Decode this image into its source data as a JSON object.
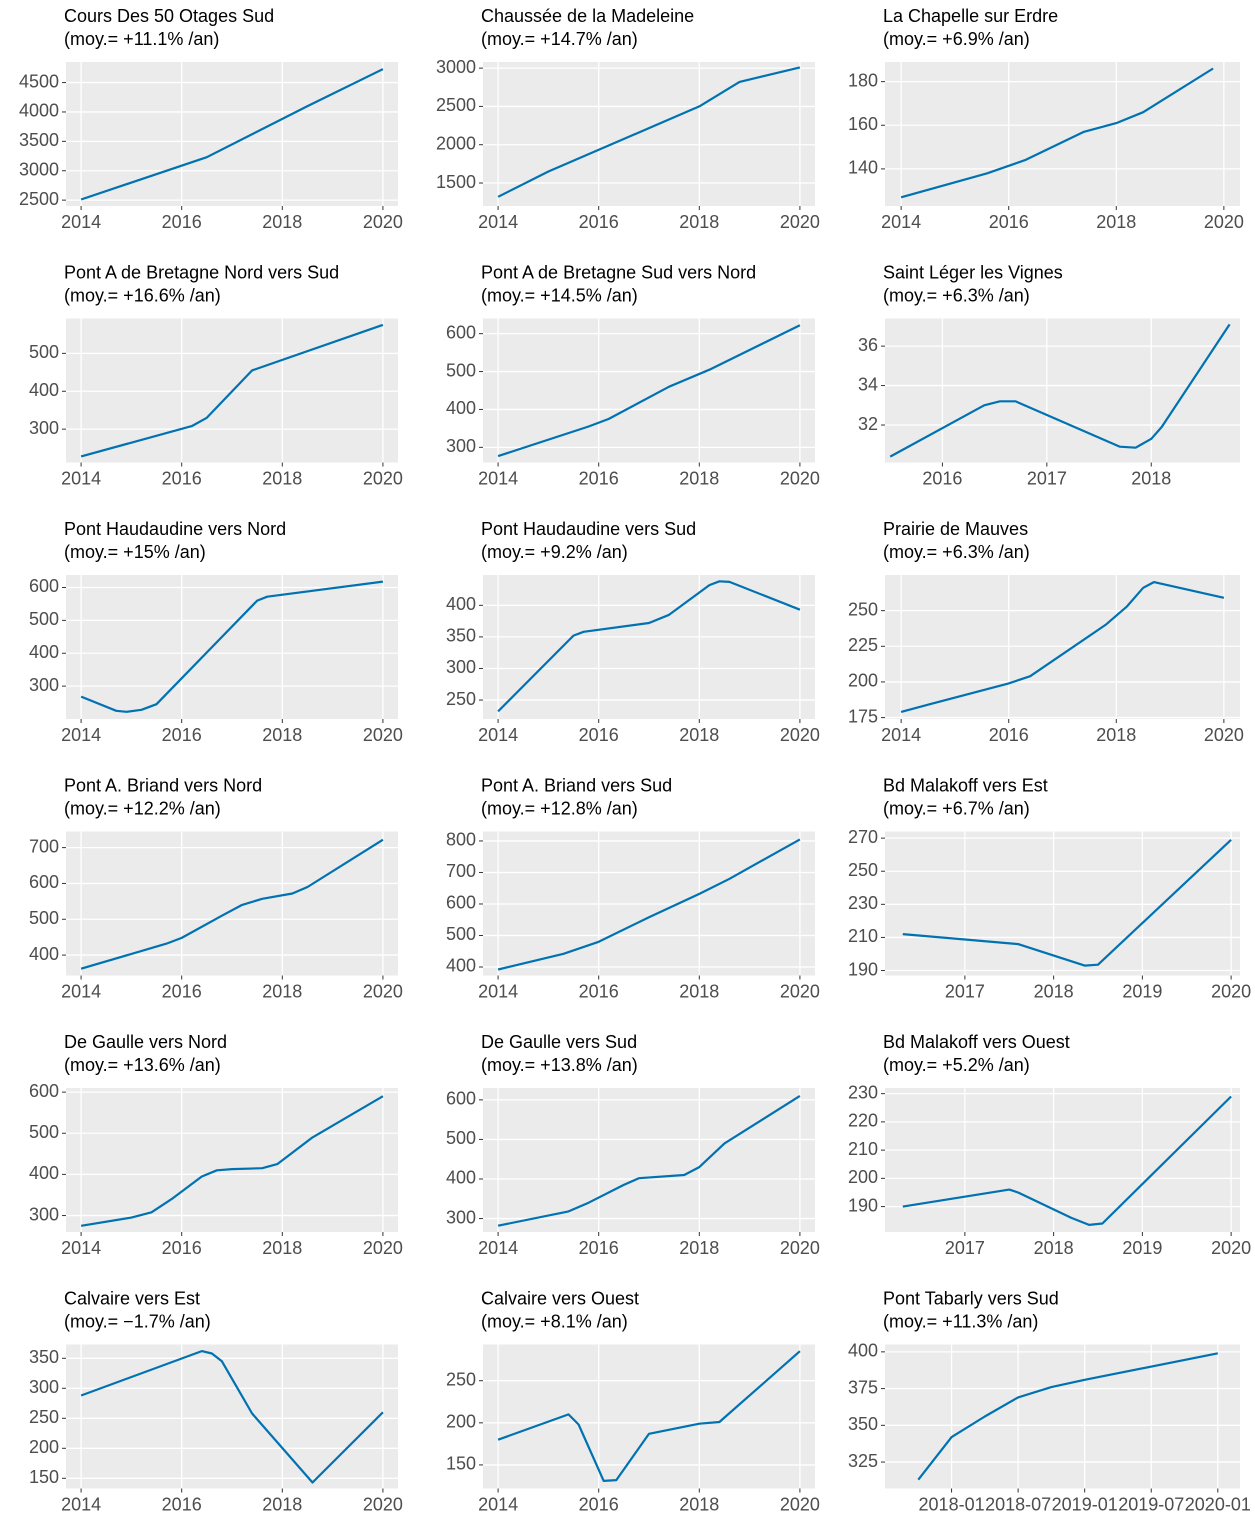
{
  "chart_data": [
    {
      "type": "line",
      "title": "Cours Des 50 Otages Sud",
      "subtitle": "(moy.= +11.1% /an)",
      "color": "#0072B2",
      "grid": true,
      "x": [
        2014,
        2016.5,
        2018.5,
        2020
      ],
      "values": [
        2510,
        3230,
        4100,
        4730
      ],
      "xlim": [
        2013.7,
        2020.3
      ],
      "xticks": [
        2014,
        2016,
        2018,
        2020
      ],
      "ylim": [
        2400,
        4850
      ],
      "yticks": [
        2500,
        3000,
        3500,
        4000,
        4500
      ]
    },
    {
      "type": "line",
      "title": "Chaussée de la Madeleine",
      "subtitle": "(moy.= +14.7% /an)",
      "color": "#0072B2",
      "grid": true,
      "x": [
        2014,
        2015,
        2018,
        2018.8,
        2020
      ],
      "values": [
        1320,
        1650,
        2500,
        2820,
        3010
      ],
      "xlim": [
        2013.7,
        2020.3
      ],
      "xticks": [
        2014,
        2016,
        2018,
        2020
      ],
      "ylim": [
        1200,
        3080
      ],
      "yticks": [
        1500,
        2000,
        2500,
        3000
      ]
    },
    {
      "type": "line",
      "title": "La Chapelle sur Erdre",
      "subtitle": "(moy.= +6.9% /an)",
      "color": "#0072B2",
      "grid": true,
      "x": [
        2014,
        2015.6,
        2016.3,
        2017.4,
        2018,
        2018.5,
        2019.8
      ],
      "values": [
        127,
        138,
        144,
        157,
        161,
        166,
        186
      ],
      "xlim": [
        2013.7,
        2020.3
      ],
      "xticks": [
        2014,
        2016,
        2018,
        2020
      ],
      "ylim": [
        123,
        189
      ],
      "yticks": [
        140,
        160,
        180
      ]
    },
    {
      "type": "line",
      "title": "Pont A de Bretagne Nord vers Sud",
      "subtitle": "(moy.= +16.6% /an)",
      "color": "#0072B2",
      "grid": true,
      "x": [
        2014,
        2016.2,
        2016.5,
        2017.4,
        2020
      ],
      "values": [
        228,
        308,
        330,
        455,
        575
      ],
      "xlim": [
        2013.7,
        2020.3
      ],
      "xticks": [
        2014,
        2016,
        2018,
        2020
      ],
      "ylim": [
        212,
        592
      ],
      "yticks": [
        300,
        400,
        500
      ]
    },
    {
      "type": "line",
      "title": "Pont A de Bretagne Sud vers Nord",
      "subtitle": "(moy.= +14.5% /an)",
      "color": "#0072B2",
      "grid": true,
      "x": [
        2014,
        2015.8,
        2016.2,
        2017.4,
        2018.2,
        2020
      ],
      "values": [
        277,
        355,
        375,
        460,
        505,
        622
      ],
      "xlim": [
        2013.7,
        2020.3
      ],
      "xticks": [
        2014,
        2016,
        2018,
        2020
      ],
      "ylim": [
        260,
        640
      ],
      "yticks": [
        300,
        400,
        500,
        600
      ]
    },
    {
      "type": "line",
      "title": "Saint Léger les Vignes",
      "subtitle": "(moy.= +6.3% /an)",
      "color": "#0072B2",
      "grid": true,
      "x": [
        2015.5,
        2016.4,
        2016.55,
        2016.7,
        2017.7,
        2017.85,
        2018,
        2018.1,
        2018.75
      ],
      "values": [
        30.4,
        33.0,
        33.2,
        33.2,
        30.9,
        30.85,
        31.3,
        31.9,
        37.1
      ],
      "xlim": [
        2015.45,
        2018.85
      ],
      "xticks": [
        2016,
        2017,
        2018
      ],
      "ylim": [
        30.1,
        37.4
      ],
      "yticks": [
        32,
        34,
        36
      ]
    },
    {
      "type": "line",
      "title": "Pont Haudaudine vers Nord",
      "subtitle": "(moy.= +15% /an)",
      "color": "#0072B2",
      "grid": true,
      "x": [
        2014,
        2014.7,
        2014.9,
        2015.2,
        2015.5,
        2017.5,
        2017.7,
        2020
      ],
      "values": [
        268,
        225,
        222,
        228,
        245,
        560,
        572,
        618
      ],
      "xlim": [
        2013.7,
        2020.3
      ],
      "xticks": [
        2014,
        2016,
        2018,
        2020
      ],
      "ylim": [
        200,
        638
      ],
      "yticks": [
        300,
        400,
        500,
        600
      ]
    },
    {
      "type": "line",
      "title": "Pont Haudaudine vers Sud",
      "subtitle": "(moy.= +9.2% /an)",
      "color": "#0072B2",
      "grid": true,
      "x": [
        2014,
        2015.5,
        2015.7,
        2017,
        2017.4,
        2018.2,
        2018.4,
        2018.6,
        2020
      ],
      "values": [
        232,
        352,
        358,
        372,
        385,
        432,
        438,
        437,
        393
      ],
      "xlim": [
        2013.7,
        2020.3
      ],
      "xticks": [
        2014,
        2016,
        2018,
        2020
      ],
      "ylim": [
        220,
        448
      ],
      "yticks": [
        250,
        300,
        350,
        400
      ]
    },
    {
      "type": "line",
      "title": "Prairie de Mauves",
      "subtitle": "(moy.= +6.3% /an)",
      "color": "#0072B2",
      "grid": true,
      "x": [
        2014,
        2014.5,
        2016,
        2016.4,
        2017.8,
        2018.2,
        2018.5,
        2018.7,
        2020
      ],
      "values": [
        179,
        184,
        199,
        204,
        240,
        253,
        266,
        270,
        259
      ],
      "xlim": [
        2013.7,
        2020.3
      ],
      "xticks": [
        2014,
        2016,
        2018,
        2020
      ],
      "ylim": [
        174,
        275
      ],
      "yticks": [
        175,
        200,
        225,
        250
      ]
    },
    {
      "type": "line",
      "title": "Pont A. Briand vers Nord",
      "subtitle": "(moy.= +12.2% /an)",
      "color": "#0072B2",
      "grid": true,
      "x": [
        2014,
        2015.7,
        2016,
        2016.8,
        2017.2,
        2017.6,
        2018.2,
        2018.5,
        2020
      ],
      "values": [
        362,
        432,
        448,
        510,
        540,
        557,
        572,
        590,
        722
      ],
      "xlim": [
        2013.7,
        2020.3
      ],
      "xticks": [
        2014,
        2016,
        2018,
        2020
      ],
      "ylim": [
        343,
        745
      ],
      "yticks": [
        400,
        500,
        600,
        700
      ]
    },
    {
      "type": "line",
      "title": "Pont A. Briand vers Sud",
      "subtitle": "(moy.= +12.8% /an)",
      "color": "#0072B2",
      "grid": true,
      "x": [
        2014,
        2015.3,
        2016,
        2017,
        2018,
        2018.6,
        2020
      ],
      "values": [
        392,
        442,
        480,
        558,
        632,
        680,
        805
      ],
      "xlim": [
        2013.7,
        2020.3
      ],
      "xticks": [
        2014,
        2016,
        2018,
        2020
      ],
      "ylim": [
        373,
        830
      ],
      "yticks": [
        400,
        500,
        600,
        700,
        800
      ]
    },
    {
      "type": "line",
      "title": "Bd Malakoff vers Est",
      "subtitle": "(moy.= +6.7% /an)",
      "color": "#0072B2",
      "grid": true,
      "x": [
        2016.3,
        2017.6,
        2018.35,
        2018.5,
        2020
      ],
      "values": [
        212,
        206,
        193,
        193.5,
        269
      ],
      "xlim": [
        2016.1,
        2020.1
      ],
      "xticks": [
        2017,
        2018,
        2019,
        2020
      ],
      "ylim": [
        187,
        274
      ],
      "yticks": [
        190,
        210,
        230,
        250,
        270
      ]
    },
    {
      "type": "line",
      "title": "De Gaulle vers Nord",
      "subtitle": "(moy.= +13.6% /an)",
      "color": "#0072B2",
      "grid": true,
      "x": [
        2014,
        2015,
        2015.4,
        2015.8,
        2016.4,
        2016.7,
        2017,
        2017.6,
        2017.9,
        2018.6,
        2020
      ],
      "values": [
        275,
        295,
        308,
        340,
        395,
        410,
        413,
        415,
        425,
        490,
        590
      ],
      "xlim": [
        2013.7,
        2020.3
      ],
      "xticks": [
        2014,
        2016,
        2018,
        2020
      ],
      "ylim": [
        260,
        610
      ],
      "yticks": [
        300,
        400,
        500,
        600
      ]
    },
    {
      "type": "line",
      "title": "De Gaulle vers Sud",
      "subtitle": "(moy.= +13.8% /an)",
      "color": "#0072B2",
      "grid": true,
      "x": [
        2014,
        2015.4,
        2015.8,
        2016.5,
        2016.8,
        2017.7,
        2018,
        2018.5,
        2020
      ],
      "values": [
        282,
        318,
        340,
        385,
        402,
        410,
        430,
        490,
        610
      ],
      "xlim": [
        2013.7,
        2020.3
      ],
      "xticks": [
        2014,
        2016,
        2018,
        2020
      ],
      "ylim": [
        266,
        630
      ],
      "yticks": [
        300,
        400,
        500,
        600
      ]
    },
    {
      "type": "line",
      "title": "Bd Malakoff vers Ouest",
      "subtitle": "(moy.= +5.2% /an)",
      "color": "#0072B2",
      "grid": true,
      "x": [
        2016.3,
        2017.5,
        2017.6,
        2018.2,
        2018.4,
        2018.55,
        2020
      ],
      "values": [
        190,
        196,
        195,
        186,
        183.5,
        184,
        229
      ],
      "xlim": [
        2016.1,
        2020.1
      ],
      "xticks": [
        2017,
        2018,
        2019,
        2020
      ],
      "ylim": [
        181,
        232
      ],
      "yticks": [
        190,
        200,
        210,
        220,
        230
      ]
    },
    {
      "type": "line",
      "title": "Calvaire vers Est",
      "subtitle": "(moy.= −1.7% /an)",
      "color": "#0072B2",
      "grid": true,
      "x": [
        2014,
        2016.4,
        2016.6,
        2016.8,
        2017.4,
        2018.6,
        2020
      ],
      "values": [
        288,
        362,
        358,
        345,
        258,
        143,
        260
      ],
      "xlim": [
        2013.7,
        2020.3
      ],
      "xticks": [
        2014,
        2016,
        2018,
        2020
      ],
      "ylim": [
        133,
        373
      ],
      "yticks": [
        150,
        200,
        250,
        300,
        350
      ]
    },
    {
      "type": "line",
      "title": "Calvaire vers Ouest",
      "subtitle": "(moy.= +8.1% /an)",
      "color": "#0072B2",
      "grid": true,
      "x": [
        2014,
        2015.4,
        2015.6,
        2016.1,
        2016.35,
        2017,
        2018,
        2018.4,
        2020
      ],
      "values": [
        180,
        210,
        198,
        131,
        132,
        187,
        199,
        201,
        285
      ],
      "xlim": [
        2013.7,
        2020.3
      ],
      "xticks": [
        2014,
        2016,
        2018,
        2020
      ],
      "ylim": [
        122,
        293
      ],
      "yticks": [
        150,
        200,
        250
      ]
    },
    {
      "type": "line",
      "title": "Pont Tabarly vers Sud",
      "subtitle": "(moy.= +11.3% /an)",
      "color": "#0072B2",
      "grid": true,
      "x": [
        "2017-10",
        "2018-01",
        "2018-04",
        "2018-07",
        "2018-10",
        "2019-01",
        "2020-01"
      ],
      "values": [
        313,
        342,
        356,
        369,
        376,
        381,
        399
      ],
      "xlim": [
        "2017-07",
        "2020-03"
      ],
      "xticks": [
        "2018-01",
        "2018-07",
        "2019-01",
        "2019-07",
        "2020-01"
      ],
      "ylim": [
        307,
        405
      ],
      "yticks": [
        325,
        350,
        375,
        400
      ]
    }
  ]
}
